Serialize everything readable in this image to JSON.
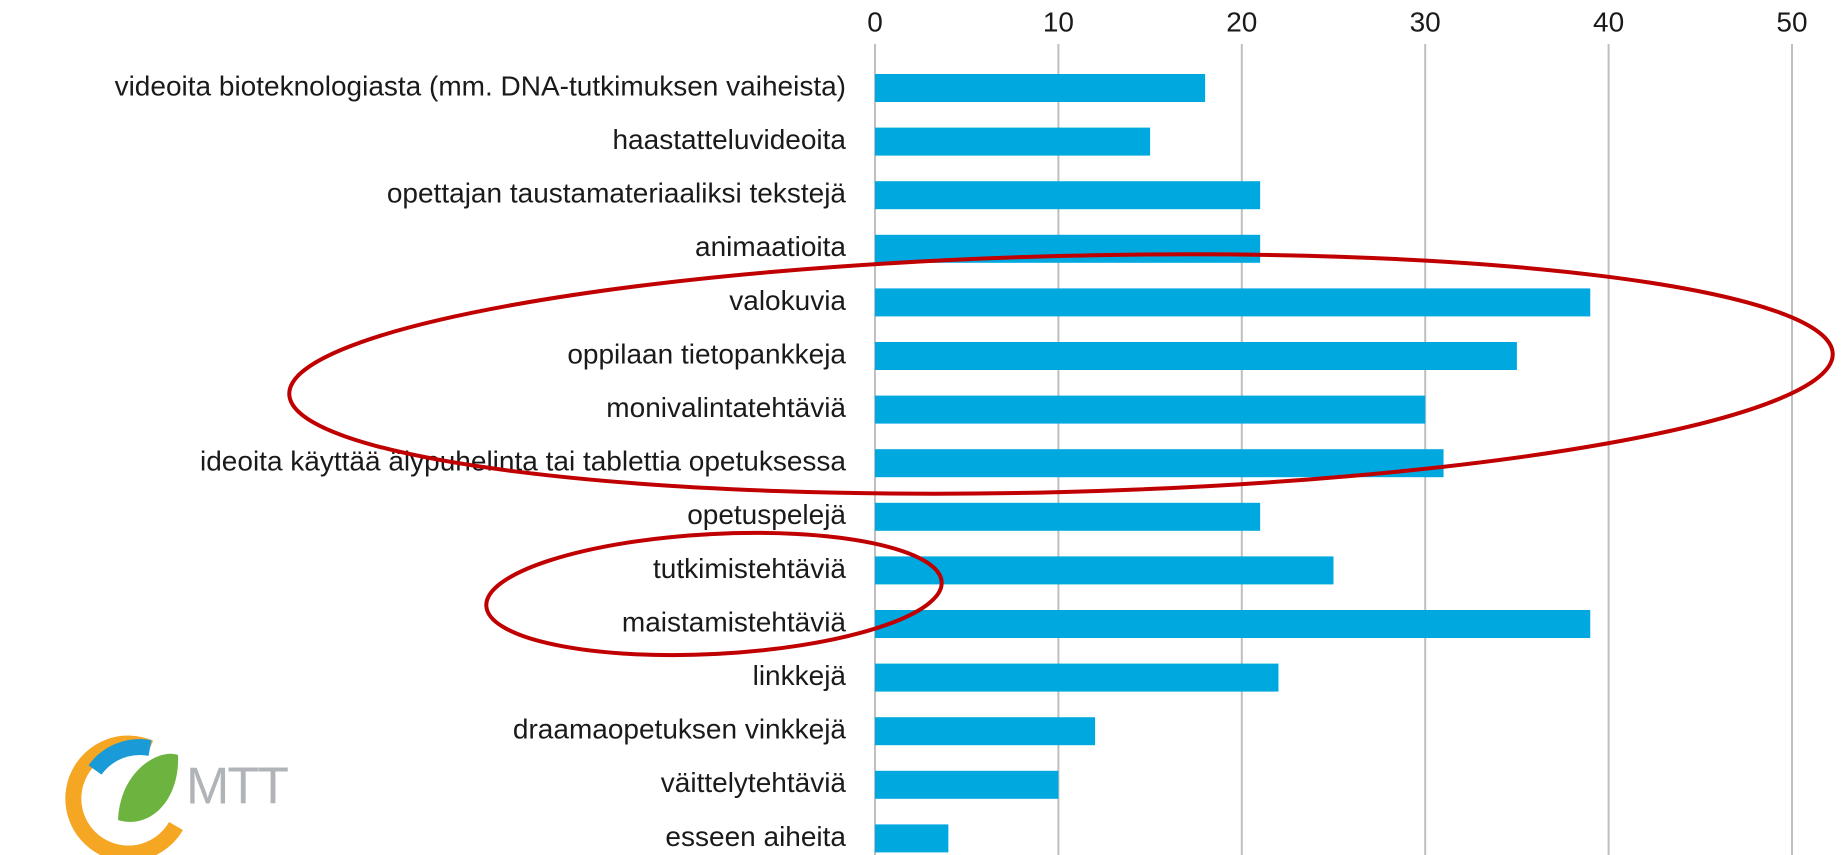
{
  "chart_data": {
    "type": "bar",
    "orientation": "horizontal",
    "categories": [
      "videoita bioteknologiasta (mm. DNA-tutkimuksen vaiheista)",
      "haastatteluvideoita",
      "opettajan taustamateriaaliksi tekstejä",
      "animaatioita",
      "valokuvia",
      "oppilaan tietopankkeja",
      "monivalintatehtäviä",
      "ideoita käyttää älypuhelinta tai tablettia opetuksessa",
      "opetuspelejä",
      "tutkimistehtäviä",
      "maistamistehtäviä",
      "linkkejä",
      "draamaopetuksen vinkkejä",
      "väittelytehtäviä",
      "esseen aiheita"
    ],
    "values": [
      18,
      15,
      21,
      21,
      39,
      35,
      30,
      31,
      21,
      25,
      39,
      22,
      12,
      10,
      4
    ],
    "color": "#00a8e0",
    "xlim": [
      0,
      50
    ],
    "xticks": [
      0,
      10,
      20,
      30,
      40,
      50
    ],
    "grid": true
  },
  "logo": {
    "text": "MTT"
  }
}
